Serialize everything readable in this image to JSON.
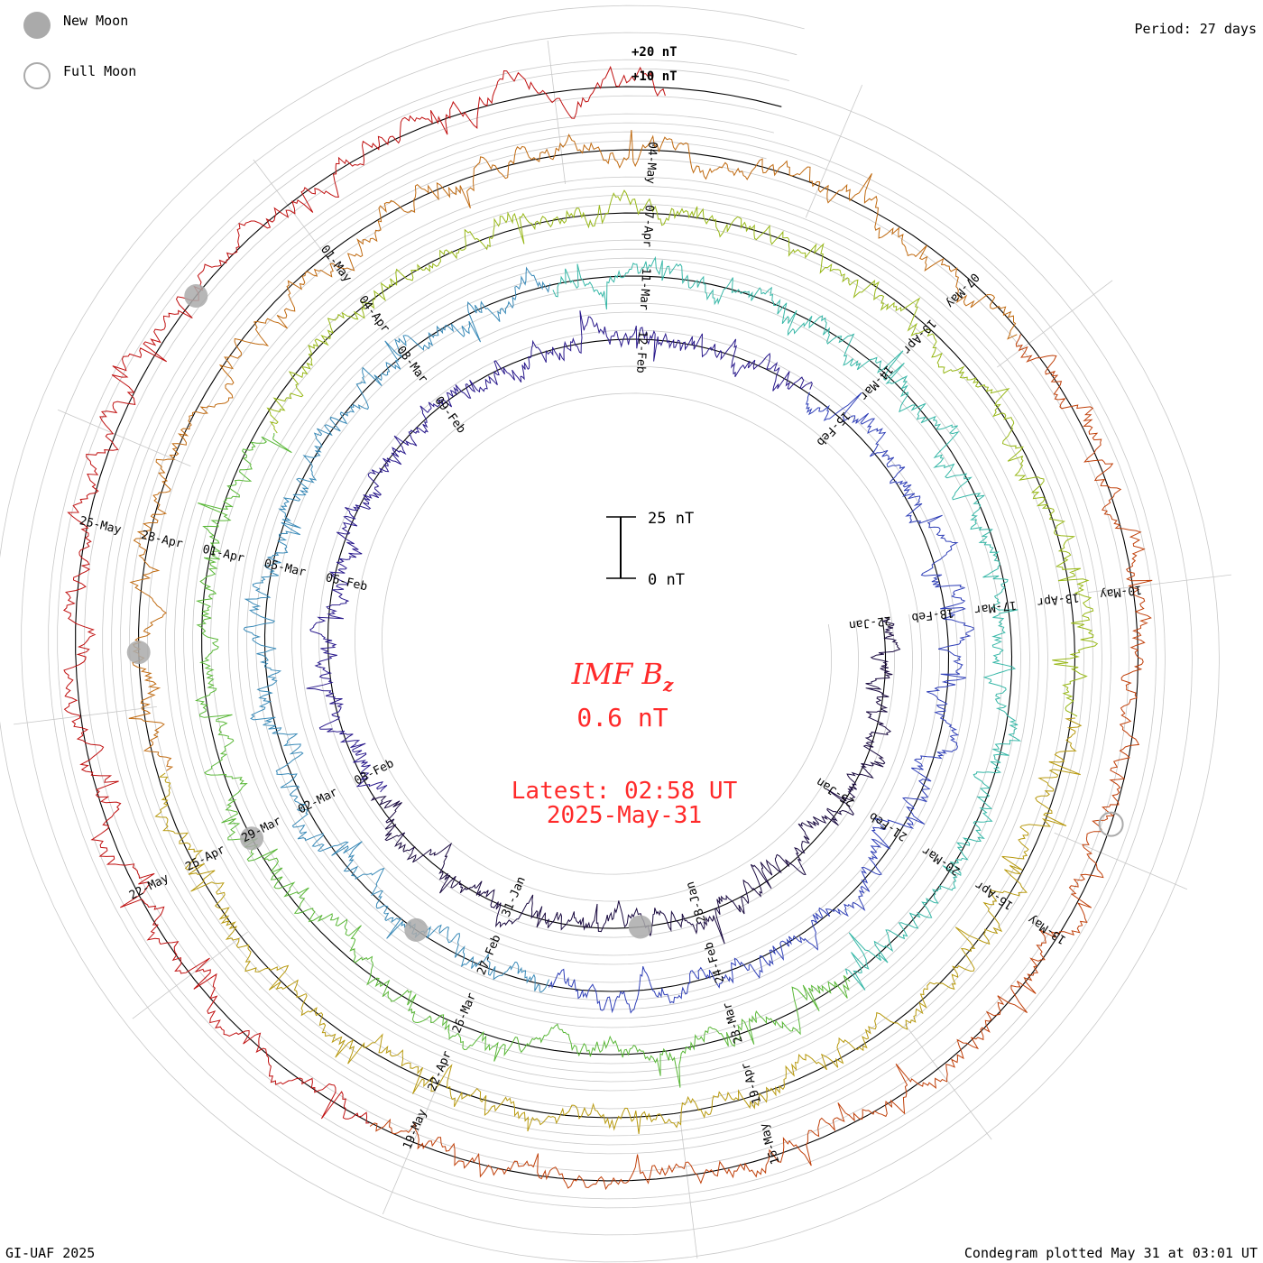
{
  "legend": {
    "new_moon_label": "New Moon",
    "full_moon_label": "Full Moon",
    "new_moon_color": "#aaaaaa",
    "full_moon_color": "#aaaaaa"
  },
  "period_label": "Period: 27 days",
  "credit_label": "GI-UAF 2025",
  "plotted_label": "Condegram plotted May 31 at 03:01 UT",
  "reference_labels": {
    "plus20": "+20 nT",
    "plus10": "+10 nT"
  },
  "scale_bar": {
    "top_label": "25 nT",
    "bottom_label": "0 nT",
    "top_value": 25,
    "bottom_value": 0
  },
  "center": {
    "title_main": "IMF B",
    "title_sub": "z",
    "value": "0.6 nT",
    "latest_label": "Latest: 02:58 UT",
    "latest_date": "2025-May-31",
    "color": "#ff2a2a"
  },
  "chart_data": {
    "type": "line",
    "subtype": "spiral condegram",
    "quantity": "IMF Bz",
    "units": "nT",
    "period_days": 27,
    "start_date": "2025-01-22",
    "end_date": "2025-05-31",
    "latest_value": 0.6,
    "series_colors": [
      "#1a0a40",
      "#2a1a8c",
      "#3040b8",
      "#3a8ab8",
      "#38b8a8",
      "#5ab838",
      "#98b818",
      "#b89a10",
      "#c06a10",
      "#c0400a",
      "#c01010"
    ],
    "date_labels": [
      "22-Jan",
      "25-Jan",
      "28-Jan",
      "31-Jan",
      "03-Feb",
      "06-Feb",
      "09-Feb",
      "12-Feb",
      "15-Feb",
      "18-Feb",
      "21-Feb",
      "24-Feb",
      "27-Feb",
      "02-Mar",
      "05-Mar",
      "08-Mar",
      "11-Mar",
      "14-Mar",
      "17-Mar",
      "20-Mar",
      "23-Mar",
      "26-Mar",
      "29-Mar",
      "01-Apr",
      "04-Apr",
      "07-Apr",
      "10-Apr",
      "13-Apr",
      "16-Apr",
      "19-Apr",
      "22-Apr",
      "25-Apr",
      "28-Apr",
      "01-May",
      "04-May",
      "07-May",
      "10-May",
      "13-May",
      "16-May",
      "19-May",
      "22-May",
      "25-May"
    ],
    "new_moons": [
      "2025-01-29",
      "2025-02-28",
      "2025-03-29",
      "2025-04-27",
      "2025-05-27"
    ],
    "full_moons": [
      "2025-05-12"
    ],
    "grid": true
  }
}
